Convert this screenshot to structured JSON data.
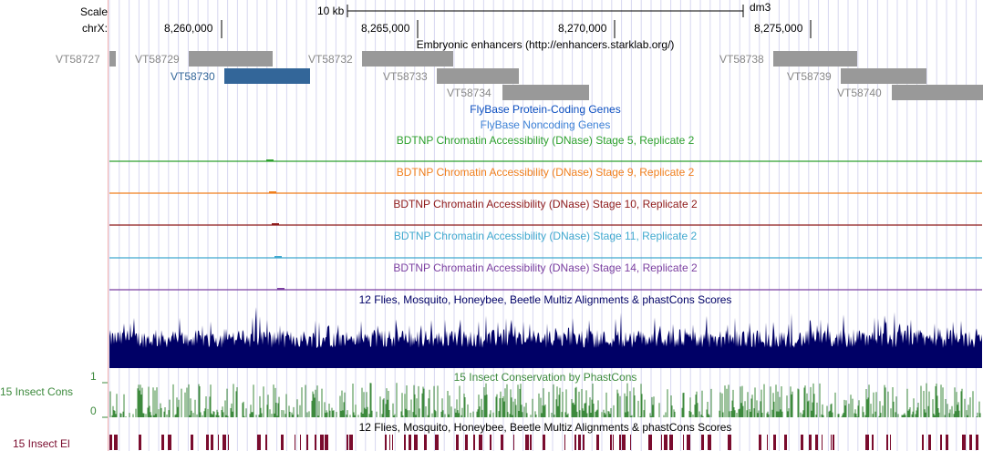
{
  "ruler": {
    "scale_label": "Scale",
    "chrom_label": "chrX:",
    "scale_bar_text": "10 kb",
    "assembly": "dm3",
    "ticks": [
      "8,260,000",
      "8,265,000",
      "8,270,000",
      "8,275,000"
    ]
  },
  "enhancers": {
    "title": "Embryonic enhancers (http://enhancers.starklab.org/)",
    "color": "#999999",
    "highlight_color": "#336699",
    "items": [
      {
        "name": "VT58727",
        "highlight": false
      },
      {
        "name": "VT58729",
        "highlight": false
      },
      {
        "name": "VT58730",
        "highlight": true
      },
      {
        "name": "VT58732",
        "highlight": false
      },
      {
        "name": "VT58733",
        "highlight": false
      },
      {
        "name": "VT58734",
        "highlight": false
      },
      {
        "name": "VT58738",
        "highlight": false
      },
      {
        "name": "VT58739",
        "highlight": false
      },
      {
        "name": "VT58740",
        "highlight": false
      }
    ]
  },
  "gene_tracks": [
    {
      "title": "FlyBase Protein-Coding Genes",
      "color": "#0c4fc0"
    },
    {
      "title": "FlyBase Noncoding Genes",
      "color": "#3d82d6"
    }
  ],
  "dnase_tracks": [
    {
      "title": "BDTNP Chromatin Accessibility (DNase) Stage 5, Replicate 2",
      "color": "#2ea12e"
    },
    {
      "title": "BDTNP Chromatin Accessibility (DNase) Stage 9, Replicate 2",
      "color": "#f07f1d"
    },
    {
      "title": "BDTNP Chromatin Accessibility (DNase) Stage 10, Replicate 2",
      "color": "#8e1a1a"
    },
    {
      "title": "BDTNP Chromatin Accessibility (DNase) Stage 11, Replicate 2",
      "color": "#40a9cf"
    },
    {
      "title": "BDTNP Chromatin Accessibility (DNase) Stage 14, Replicate 2",
      "color": "#7b3fa0"
    }
  ],
  "multiz": {
    "title": "12 Flies, Mosquito, Honeybee, Beetle Multiz Alignments & phastCons Scores",
    "color": "#000066"
  },
  "phastcons": {
    "side_label": "15 Insect Cons",
    "title": "15 Insect Conservation by PhastCons",
    "axis_max": "1",
    "axis_min": "0",
    "color": "#3d8a3d"
  },
  "elements": {
    "side_label": "15 Insect El",
    "title": "12 Flies, Mosquito, Honeybee, Beetle Multiz Alignments & phastCons Scores",
    "color": "#7a0c2e"
  },
  "colors": {
    "grid": "#d7d7f0",
    "left_margin_line": "#f3b0b0"
  }
}
